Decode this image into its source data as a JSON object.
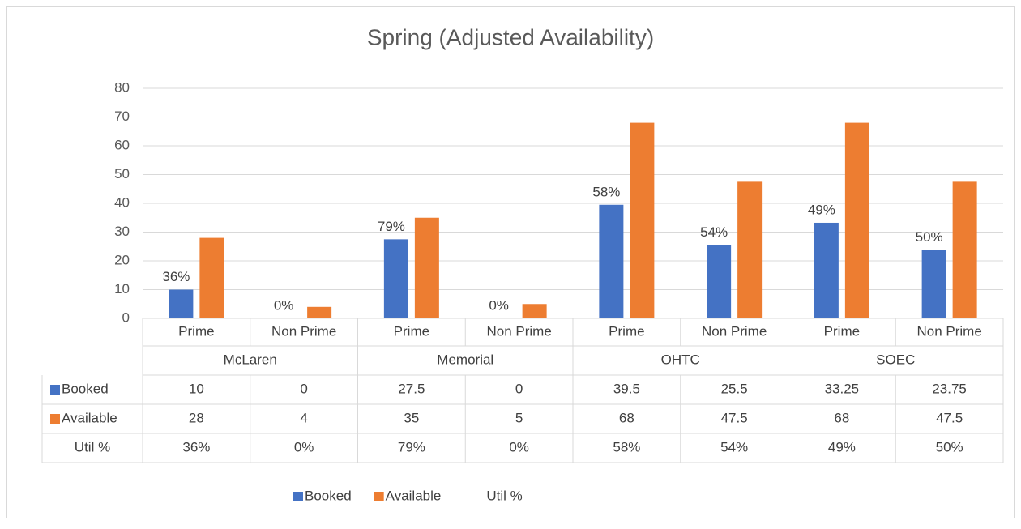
{
  "chart_data": {
    "type": "bar",
    "title": "Spring (Adjusted Availability)",
    "categories": [
      "Prime",
      "Non Prime",
      "Prime",
      "Non Prime",
      "Prime",
      "Non Prime",
      "Prime",
      "Non Prime"
    ],
    "groups": [
      "McLaren",
      "Memorial",
      "OHTC",
      "SOEC"
    ],
    "series": [
      {
        "name": "Booked",
        "color": "#4472c4",
        "values": [
          10,
          0,
          27.5,
          0,
          39.5,
          25.5,
          33.25,
          23.75
        ]
      },
      {
        "name": "Available",
        "color": "#ed7d31",
        "values": [
          28,
          4,
          35,
          5,
          68,
          47.5,
          68,
          47.5
        ]
      },
      {
        "name": "Util %",
        "values": [
          36,
          0,
          79,
          0,
          58,
          54,
          49,
          50
        ],
        "value_labels": [
          "36%",
          "0%",
          "79%",
          "0%",
          "58%",
          "54%",
          "49%",
          "50%"
        ]
      }
    ],
    "ylim": [
      0,
      80
    ],
    "yticks": [
      0,
      10,
      20,
      30,
      40,
      50,
      60,
      70,
      80
    ],
    "grid": true,
    "legend": "bottom"
  }
}
